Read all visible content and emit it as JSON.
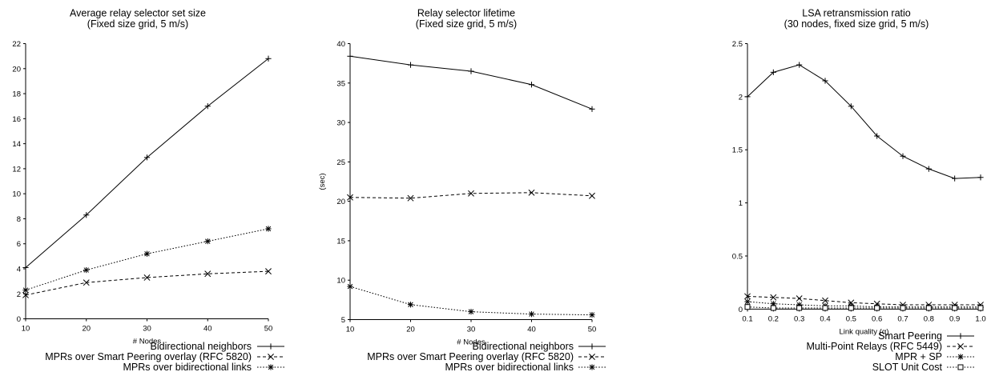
{
  "chart_data": [
    {
      "type": "line",
      "title": "Average relay selector set size",
      "subtitle": "(Fixed size grid, 5 m/s)",
      "xlabel": "# Nodes",
      "ylabel": "",
      "xlim": [
        10,
        50
      ],
      "ylim": [
        0,
        22
      ],
      "x_ticks": [
        "10",
        "20",
        "30",
        "40",
        "50"
      ],
      "y_ticks": [
        "0",
        "2",
        "4",
        "6",
        "8",
        "10",
        "12",
        "14",
        "16",
        "18",
        "20",
        "22"
      ],
      "x": [
        10,
        20,
        30,
        40,
        50
      ],
      "grid": false,
      "legend_position": "bottom-right",
      "series": [
        {
          "name": "Bidirectional neighbors",
          "values": [
            4.1,
            8.3,
            12.9,
            17.0,
            20.8
          ],
          "marker": "+",
          "dash": "solid"
        },
        {
          "name": "MPRs over Smart Peering overlay (RFC 5820)",
          "values": [
            1.9,
            2.9,
            3.3,
            3.6,
            3.8
          ],
          "marker": "x",
          "dash": "dashed"
        },
        {
          "name": "MPRs over bidirectional links",
          "values": [
            2.3,
            3.9,
            5.2,
            6.2,
            7.2
          ],
          "marker": "*",
          "dash": "dotted"
        }
      ]
    },
    {
      "type": "line",
      "title": "Relay selector lifetime",
      "subtitle": "(Fixed size grid, 5 m/s)",
      "xlabel": "# Nodes",
      "ylabel": "(sec)",
      "xlim": [
        10,
        50
      ],
      "ylim": [
        5,
        40
      ],
      "x_ticks": [
        "10",
        "20",
        "30",
        "40",
        "50"
      ],
      "y_ticks": [
        "5",
        "10",
        "15",
        "20",
        "25",
        "30",
        "35",
        "40"
      ],
      "x": [
        10,
        20,
        30,
        40,
        50
      ],
      "grid": false,
      "legend_position": "bottom-right",
      "series": [
        {
          "name": "Bidirectional neighbors",
          "values": [
            38.4,
            37.3,
            36.5,
            34.8,
            31.7
          ],
          "marker": "+",
          "dash": "solid"
        },
        {
          "name": "MPRs over Smart Peering overlay (RFC 5820)",
          "values": [
            20.5,
            20.4,
            21.0,
            21.1,
            20.7
          ],
          "marker": "x",
          "dash": "dashed"
        },
        {
          "name": "MPRs over bidirectional links",
          "values": [
            9.2,
            6.9,
            6.0,
            5.7,
            5.6
          ],
          "marker": "*",
          "dash": "dotted"
        }
      ]
    },
    {
      "type": "line",
      "title": "LSA retransmission ratio",
      "subtitle": "(30 nodes, fixed size grid, 5 m/s)",
      "xlabel": "Link quality (α)",
      "ylabel": "",
      "xlim": [
        0.1,
        1.0
      ],
      "ylim": [
        0,
        2.5
      ],
      "x_ticks": [
        "0.1",
        "0.2",
        "0.3",
        "0.4",
        "0.5",
        "0.6",
        "0.7",
        "0.8",
        "0.9",
        "1.0"
      ],
      "y_ticks": [
        "0",
        "0.5",
        "1",
        "1.5",
        "2",
        "2.5"
      ],
      "x": [
        0.1,
        0.2,
        0.3,
        0.4,
        0.5,
        0.6,
        0.7,
        0.8,
        0.9,
        1.0
      ],
      "grid": false,
      "legend_position": "bottom-right",
      "series": [
        {
          "name": "Smart Peering",
          "values": [
            2.0,
            2.23,
            2.3,
            2.15,
            1.91,
            1.63,
            1.44,
            1.32,
            1.23,
            1.24
          ],
          "marker": "+",
          "dash": "solid"
        },
        {
          "name": "Multi-Point Relays (RFC 5449)",
          "values": [
            0.12,
            0.11,
            0.1,
            0.08,
            0.06,
            0.05,
            0.04,
            0.04,
            0.04,
            0.04
          ],
          "marker": "x",
          "dash": "dashed"
        },
        {
          "name": "MPR + SP",
          "values": [
            0.07,
            0.05,
            0.04,
            0.03,
            0.03,
            0.02,
            0.02,
            0.02,
            0.02,
            0.02
          ],
          "marker": "*",
          "dash": "dotted"
        },
        {
          "name": "SLOT Unit Cost",
          "values": [
            0.02,
            0.01,
            0.01,
            0.01,
            0.01,
            0.01,
            0.01,
            0.01,
            0.01,
            0.01
          ],
          "marker": "square",
          "dash": "dotted"
        }
      ]
    }
  ]
}
